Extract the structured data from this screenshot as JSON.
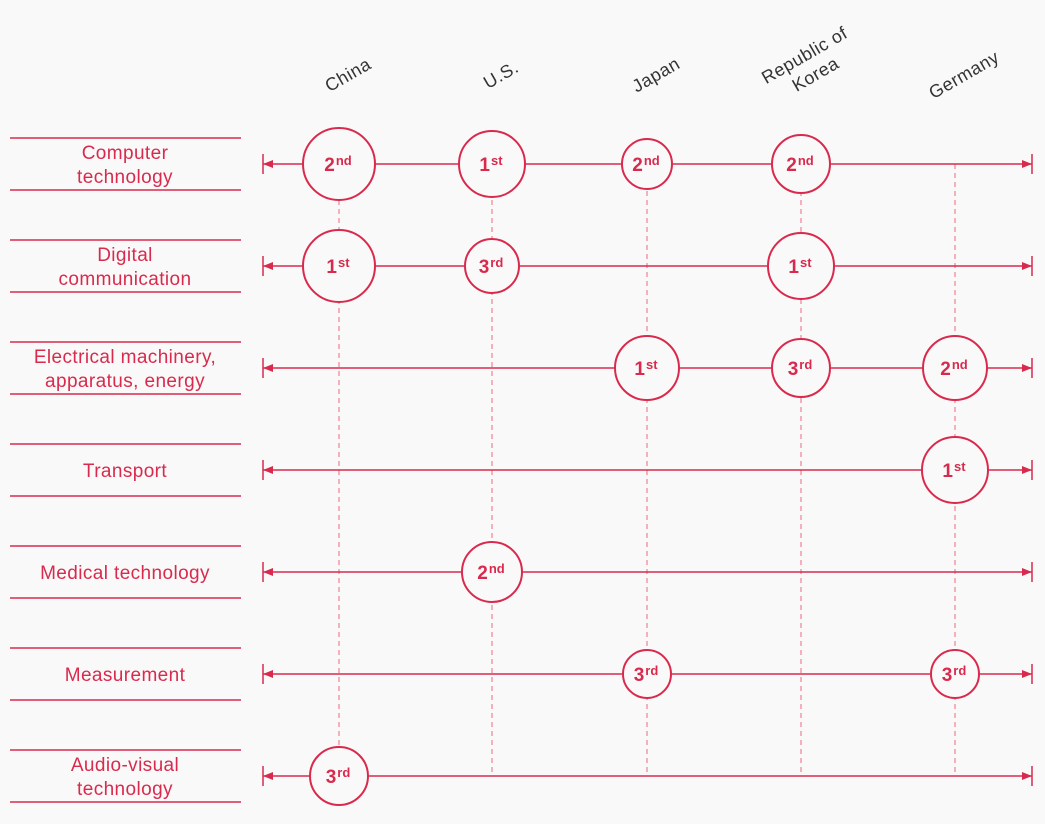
{
  "columns": [
    {
      "lines": [
        "China"
      ]
    },
    {
      "lines": [
        "U.S."
      ]
    },
    {
      "lines": [
        "Japan"
      ]
    },
    {
      "lines": [
        "Republic of",
        "Korea"
      ]
    },
    {
      "lines": [
        "Germany"
      ]
    }
  ],
  "rows": [
    {
      "lines": [
        "Computer",
        "technology"
      ],
      "ranks": [
        {
          "num": "2",
          "sup": "nd"
        },
        {
          "num": "1",
          "sup": "st"
        },
        {
          "num": "2",
          "sup": "nd"
        },
        {
          "num": "2",
          "sup": "nd"
        },
        null
      ]
    },
    {
      "lines": [
        "Digital",
        "communication"
      ],
      "ranks": [
        {
          "num": "1",
          "sup": "st"
        },
        {
          "num": "3",
          "sup": "rd"
        },
        null,
        {
          "num": "1",
          "sup": "st"
        },
        null
      ]
    },
    {
      "lines": [
        "Electrical machinery,",
        "apparatus, energy"
      ],
      "ranks": [
        null,
        null,
        {
          "num": "1",
          "sup": "st"
        },
        {
          "num": "3",
          "sup": "rd"
        },
        {
          "num": "2",
          "sup": "nd"
        }
      ]
    },
    {
      "lines": [
        "Transport"
      ],
      "ranks": [
        null,
        null,
        null,
        null,
        {
          "num": "1",
          "sup": "st"
        }
      ]
    },
    {
      "lines": [
        "Medical technology"
      ],
      "ranks": [
        null,
        {
          "num": "2",
          "sup": "nd"
        },
        null,
        null,
        null
      ]
    },
    {
      "lines": [
        "Measurement"
      ],
      "ranks": [
        null,
        null,
        {
          "num": "3",
          "sup": "rd"
        },
        null,
        {
          "num": "3",
          "sup": "rd"
        }
      ]
    },
    {
      "lines": [
        "Audio-visual",
        "technology"
      ],
      "ranks": [
        {
          "num": "3",
          "sup": "rd"
        },
        null,
        null,
        null,
        null
      ]
    }
  ]
}
